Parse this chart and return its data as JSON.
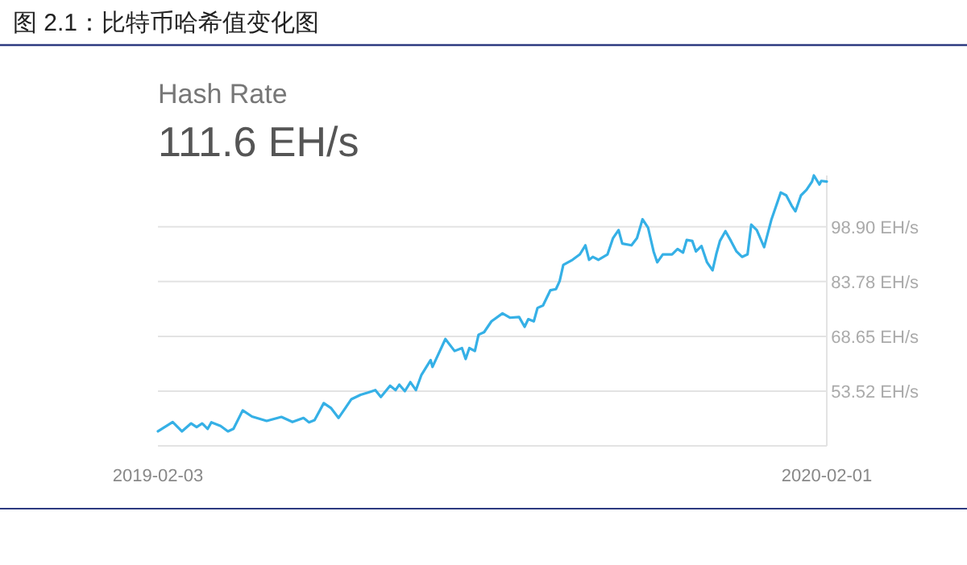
{
  "chart_data": {
    "type": "line",
    "title": "图 2.1：比特币哈希值变化图",
    "subtitle": "Hash Rate",
    "annotations": [
      "111.6 EH/s"
    ],
    "x": [
      "2019-02-03",
      "2019-02-11",
      "2019-02-16",
      "2019-02-21",
      "2019-02-24",
      "2019-02-27",
      "2019-03-02",
      "2019-03-04",
      "2019-03-09",
      "2019-03-13",
      "2019-03-16",
      "2019-03-21",
      "2019-03-26",
      "2019-04-03",
      "2019-04-11",
      "2019-04-17",
      "2019-04-23",
      "2019-04-26",
      "2019-04-29",
      "2019-05-04",
      "2019-05-08",
      "2019-05-12",
      "2019-05-15",
      "2019-05-19",
      "2019-05-24",
      "2019-05-28",
      "2019-06-01",
      "2019-06-04",
      "2019-06-09",
      "2019-06-12",
      "2019-06-14",
      "2019-06-17",
      "2019-06-20",
      "2019-06-23",
      "2019-06-26",
      "2019-07-01",
      "2019-07-02",
      "2019-07-09",
      "2019-07-14",
      "2019-07-18",
      "2019-07-20",
      "2019-07-22",
      "2019-07-25",
      "2019-07-27",
      "2019-07-30",
      "2019-08-03",
      "2019-08-09",
      "2019-08-13",
      "2019-08-18",
      "2019-08-21",
      "2019-08-23",
      "2019-08-26",
      "2019-08-28",
      "2019-08-31",
      "2019-09-04",
      "2019-09-07",
      "2019-09-09",
      "2019-09-11",
      "2019-09-16",
      "2019-09-20",
      "2019-09-23",
      "2019-09-25",
      "2019-09-27",
      "2019-09-30",
      "2019-10-05",
      "2019-10-08",
      "2019-10-11",
      "2019-10-13",
      "2019-10-18",
      "2019-10-21",
      "2019-10-24",
      "2019-10-27",
      "2019-10-30",
      "2019-11-01",
      "2019-11-04",
      "2019-11-09",
      "2019-11-12",
      "2019-11-15",
      "2019-11-17",
      "2019-11-20",
      "2019-11-22",
      "2019-11-25",
      "2019-11-28",
      "2019-12-01",
      "2019-12-03",
      "2019-12-05",
      "2019-12-08",
      "2019-12-11",
      "2019-12-14",
      "2019-12-17",
      "2019-12-20",
      "2019-12-22",
      "2019-12-25",
      "2019-12-29",
      "2020-01-02",
      "2020-01-05",
      "2020-01-07",
      "2020-01-10",
      "2020-01-13",
      "2020-01-15",
      "2020-01-18",
      "2020-01-21",
      "2020-01-24",
      "2020-01-25",
      "2020-01-28",
      "2020-01-29",
      "2020-02-01"
    ],
    "series": [
      {
        "color": "#35b0e6",
        "values": [
          42.4,
          45.0,
          42.4,
          44.6,
          43.6,
          44.6,
          43.1,
          44.9,
          43.9,
          42.4,
          43.1,
          48.2,
          46.5,
          45.3,
          46.4,
          45.0,
          46.1,
          44.9,
          45.5,
          50.2,
          48.8,
          46.1,
          48.3,
          51.3,
          52.5,
          53.1,
          53.8,
          51.9,
          55.0,
          53.8,
          55.3,
          53.5,
          56.0,
          53.8,
          58.0,
          62.1,
          60.2,
          67.9,
          64.6,
          65.4,
          62.4,
          65.4,
          64.6,
          69.1,
          69.8,
          72.8,
          75.0,
          73.8,
          74.0,
          71.3,
          73.4,
          72.8,
          76.5,
          77.2,
          81.4,
          81.7,
          83.9,
          88.4,
          89.8,
          91.3,
          93.8,
          89.8,
          90.6,
          89.8,
          91.3,
          95.8,
          98.0,
          94.3,
          93.8,
          95.8,
          101.0,
          98.7,
          92.1,
          89.1,
          91.3,
          91.3,
          92.8,
          91.8,
          95.3,
          95.0,
          92.1,
          93.6,
          89.1,
          86.9,
          91.3,
          95.0,
          97.7,
          95.0,
          92.1,
          90.6,
          91.3,
          99.5,
          98.0,
          93.3,
          101.0,
          105.4,
          108.4,
          107.6,
          104.7,
          103.2,
          107.6,
          109.1,
          111.4,
          113.1,
          110.6,
          111.6,
          111.4
        ]
      }
    ],
    "xlim": [
      "2019-02-03",
      "2020-02-01"
    ],
    "xticks": [
      "2019-02-03",
      "2020-02-01"
    ],
    "ylim": [
      38.39,
      113.1
    ],
    "yticks": [
      {
        "value": 38.39,
        "label": null
      },
      {
        "value": 53.52,
        "label": "53.52 EH/s"
      },
      {
        "value": 68.65,
        "label": "68.65 EH/s"
      },
      {
        "value": 83.78,
        "label": "83.78 EH/s"
      },
      {
        "value": 98.9,
        "label": "98.90 EH/s"
      }
    ],
    "grid": "y",
    "marker": "none",
    "line_style": "solid"
  }
}
